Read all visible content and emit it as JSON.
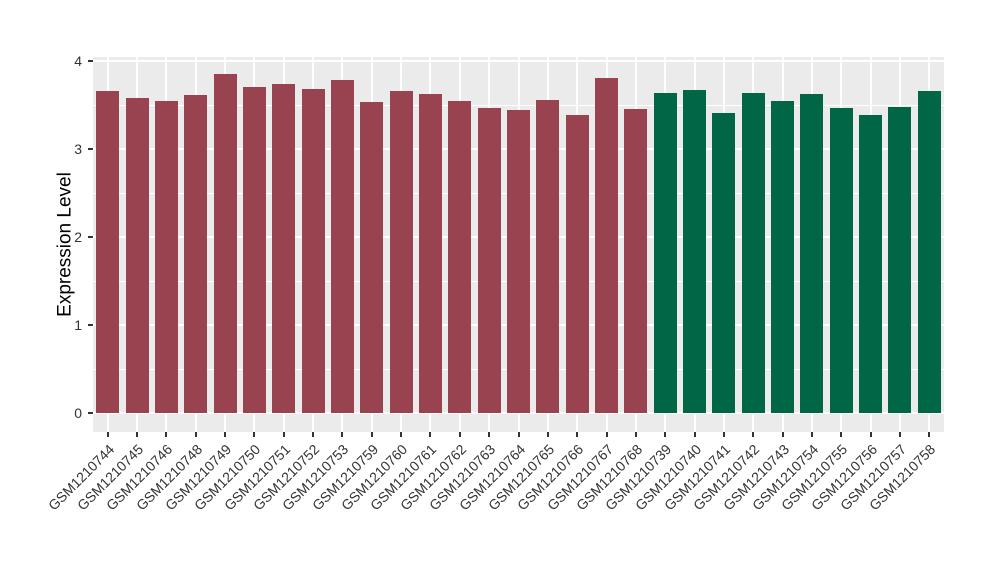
{
  "chart_data": {
    "type": "bar",
    "title": "",
    "xlabel": "",
    "ylabel": "Expression Level",
    "ylim": [
      0,
      4
    ],
    "yticks": [
      0,
      1,
      2,
      3,
      4
    ],
    "ytick_labels": [
      "0",
      "1",
      "2",
      "3",
      "4"
    ],
    "grid": true,
    "legend_position": "none",
    "panel_background": "#EBEBEB",
    "gridline_color": "#FFFFFF",
    "axis_text_color": "#333333",
    "axis_title_color": "#000000",
    "group_colors": {
      "maroon": "#9A4350",
      "green": "#006646"
    },
    "categories": [
      "GSM1210744",
      "GSM1210745",
      "GSM1210746",
      "GSM1210748",
      "GSM1210749",
      "GSM1210750",
      "GSM1210751",
      "GSM1210752",
      "GSM1210753",
      "GSM1210759",
      "GSM1210760",
      "GSM1210761",
      "GSM1210762",
      "GSM1210763",
      "GSM1210764",
      "GSM1210765",
      "GSM1210766",
      "GSM1210767",
      "GSM1210768",
      "GSM1210739",
      "GSM1210740",
      "GSM1210741",
      "GSM1210742",
      "GSM1210743",
      "GSM1210754",
      "GSM1210755",
      "GSM1210756",
      "GSM1210757",
      "GSM1210758"
    ],
    "values": [
      3.66,
      3.58,
      3.55,
      3.61,
      3.85,
      3.71,
      3.74,
      3.68,
      3.78,
      3.53,
      3.66,
      3.63,
      3.55,
      3.47,
      3.44,
      3.56,
      3.39,
      3.81,
      3.46,
      3.64,
      3.67,
      3.41,
      3.64,
      3.55,
      3.63,
      3.47,
      3.39,
      3.48,
      3.66
    ],
    "groups": [
      "maroon",
      "maroon",
      "maroon",
      "maroon",
      "maroon",
      "maroon",
      "maroon",
      "maroon",
      "maroon",
      "maroon",
      "maroon",
      "maroon",
      "maroon",
      "maroon",
      "maroon",
      "maroon",
      "maroon",
      "maroon",
      "maroon",
      "green",
      "green",
      "green",
      "green",
      "green",
      "green",
      "green",
      "green",
      "green",
      "green"
    ]
  }
}
